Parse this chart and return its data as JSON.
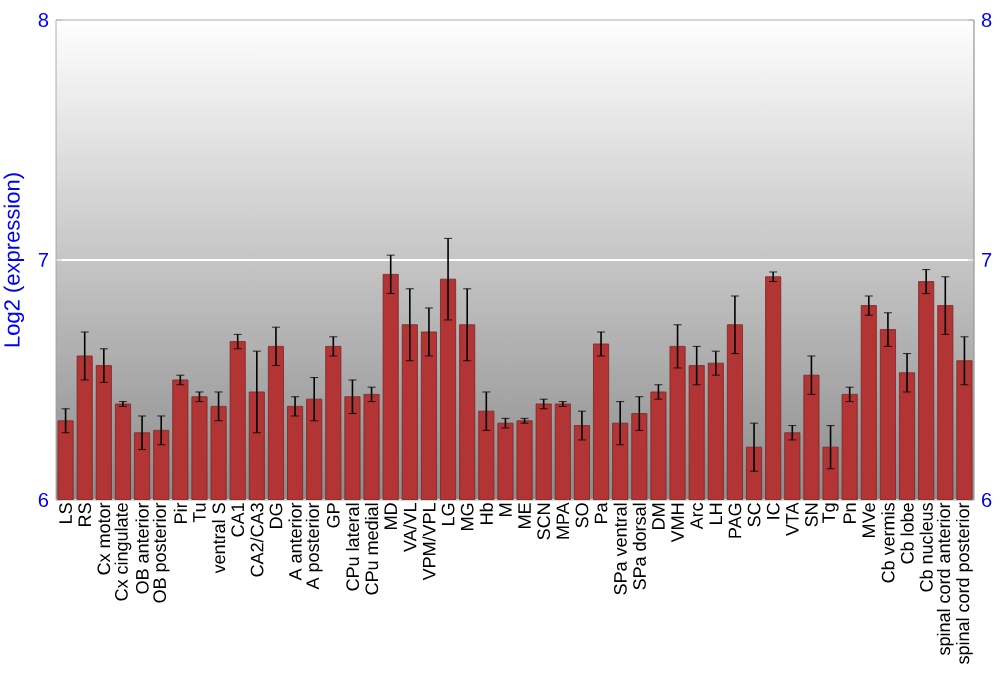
{
  "chart_data": {
    "type": "bar",
    "ylabel": "Log2 (expression)",
    "color": "#b33434",
    "categories": [
      "LS",
      "RS",
      "Cx motor",
      "Cx cingulate",
      "OB anterior",
      "OB posterior",
      "Pir",
      "Tu",
      "ventral S",
      "CA1",
      "CA2/CA3",
      "DG",
      "A anterior",
      "A posterior",
      "GP",
      "CPu lateral",
      "CPu medial",
      "MD",
      "VA/VL",
      "VPM/VPL",
      "LG",
      "MG",
      "Hb",
      "M",
      "ME",
      "SCN",
      "MPA",
      "SO",
      "Pa",
      "SPa ventral",
      "SPa dorsal",
      "DM",
      "VMH",
      "Arc",
      "LH",
      "PAG",
      "SC",
      "IC",
      "VTA",
      "SN",
      "Tg",
      "Pn",
      "MVe",
      "Cb vermis",
      "Cb lobe",
      "Cb nucleus",
      "spinal cord anterior",
      "spinal cord posterior"
    ],
    "values": [
      6.33,
      6.6,
      6.56,
      6.4,
      6.28,
      6.29,
      6.5,
      6.43,
      6.39,
      6.66,
      6.45,
      6.64,
      6.39,
      6.42,
      6.64,
      6.43,
      6.44,
      6.94,
      6.73,
      6.7,
      6.92,
      6.73,
      6.37,
      6.32,
      6.33,
      6.4,
      6.4,
      6.31,
      6.65,
      6.32,
      6.36,
      6.45,
      6.64,
      6.56,
      6.57,
      6.73,
      6.22,
      6.93,
      6.28,
      6.52,
      6.22,
      6.44,
      6.81,
      6.71,
      6.53,
      6.91,
      6.81,
      6.58
    ],
    "errors": [
      0.05,
      0.1,
      0.07,
      0.01,
      0.07,
      0.06,
      0.02,
      0.02,
      0.06,
      0.03,
      0.17,
      0.08,
      0.04,
      0.09,
      0.04,
      0.07,
      0.03,
      0.08,
      0.15,
      0.1,
      0.17,
      0.15,
      0.08,
      0.02,
      0.01,
      0.02,
      0.01,
      0.06,
      0.05,
      0.09,
      0.07,
      0.03,
      0.09,
      0.08,
      0.05,
      0.12,
      0.1,
      0.02,
      0.03,
      0.08,
      0.09,
      0.03,
      0.04,
      0.07,
      0.08,
      0.05,
      0.12,
      0.1
    ],
    "ylim": [
      6,
      8
    ],
    "yticks": [
      6,
      7,
      8
    ],
    "y2lim": [
      6,
      8
    ],
    "y2ticks": [
      6,
      7,
      8
    ],
    "grid": "y"
  }
}
